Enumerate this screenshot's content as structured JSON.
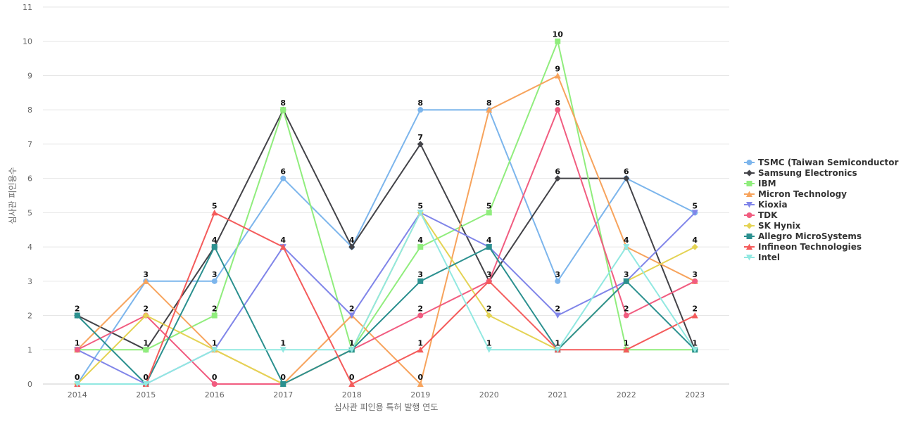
{
  "chart_data": {
    "type": "line",
    "xlabel": "심사관 피인용 특허 발행 연도",
    "ylabel": "심사관 피인용수",
    "ylim": [
      0,
      11
    ],
    "yticks": [
      0,
      1,
      2,
      3,
      4,
      5,
      6,
      7,
      8,
      9,
      10,
      11
    ],
    "grid": true,
    "legend_position": "right",
    "categories": [
      "2014",
      "2015",
      "2016",
      "2017",
      "2018",
      "2019",
      "2020",
      "2021",
      "2022",
      "2023"
    ],
    "series": [
      {
        "name": "TSMC (Taiwan Semiconductor ...",
        "color": "#7cb5ec",
        "marker": "circle",
        "values": [
          0,
          3,
          3,
          6,
          4,
          8,
          8,
          3,
          6,
          5
        ]
      },
      {
        "name": "Samsung Electronics",
        "color": "#434348",
        "marker": "diamond",
        "values": [
          2,
          1,
          4,
          8,
          4,
          7,
          3,
          6,
          6,
          1
        ]
      },
      {
        "name": "IBM",
        "color": "#90ed7d",
        "marker": "square",
        "values": [
          1,
          1,
          2,
          8,
          1,
          4,
          5,
          10,
          1,
          1
        ]
      },
      {
        "name": "Micron Technology",
        "color": "#f7a35c",
        "marker": "triangle",
        "values": [
          1,
          3,
          1,
          0,
          2,
          0,
          8,
          9,
          4,
          3
        ]
      },
      {
        "name": "Kioxia",
        "color": "#8085e9",
        "marker": "triangle-down",
        "values": [
          1,
          0,
          1,
          4,
          2,
          5,
          4,
          2,
          3,
          5
        ]
      },
      {
        "name": "TDK",
        "color": "#f15c80",
        "marker": "circle",
        "values": [
          1,
          2,
          0,
          0,
          1,
          2,
          3,
          8,
          2,
          3
        ]
      },
      {
        "name": "SK Hynix",
        "color": "#e4d354",
        "marker": "diamond",
        "values": [
          0,
          2,
          1,
          0,
          1,
          5,
          2,
          1,
          3,
          4
        ]
      },
      {
        "name": "Allegro MicroSystems",
        "color": "#2b908f",
        "marker": "square",
        "values": [
          2,
          0,
          4,
          0,
          1,
          3,
          4,
          1,
          3,
          1
        ]
      },
      {
        "name": "Infineon Technologies",
        "color": "#f45b5b",
        "marker": "triangle",
        "values": [
          0,
          0,
          5,
          4,
          0,
          1,
          3,
          1,
          1,
          2
        ]
      },
      {
        "name": "Intel",
        "color": "#91e8e1",
        "marker": "triangle-down",
        "values": [
          0,
          0,
          1,
          1,
          1,
          5,
          1,
          1,
          4,
          1
        ]
      }
    ],
    "data_labels": [
      {
        "category": "2014",
        "value": 2
      },
      {
        "category": "2014",
        "value": 1
      },
      {
        "category": "2014",
        "value": 0
      },
      {
        "category": "2015",
        "value": 3
      },
      {
        "category": "2015",
        "value": 2
      },
      {
        "category": "2015",
        "value": 1
      },
      {
        "category": "2015",
        "value": 0
      },
      {
        "category": "2016",
        "value": 5
      },
      {
        "category": "2016",
        "value": 4
      },
      {
        "category": "2016",
        "value": 3
      },
      {
        "category": "2016",
        "value": 2
      },
      {
        "category": "2016",
        "value": 1
      },
      {
        "category": "2016",
        "value": 0
      },
      {
        "category": "2017",
        "value": 8
      },
      {
        "category": "2017",
        "value": 6
      },
      {
        "category": "2017",
        "value": 4
      },
      {
        "category": "2017",
        "value": 1
      },
      {
        "category": "2017",
        "value": 0
      },
      {
        "category": "2018",
        "value": 4
      },
      {
        "category": "2018",
        "value": 2
      },
      {
        "category": "2018",
        "value": 1
      },
      {
        "category": "2018",
        "value": 0
      },
      {
        "category": "2019",
        "value": 8
      },
      {
        "category": "2019",
        "value": 7
      },
      {
        "category": "2019",
        "value": 5
      },
      {
        "category": "2019",
        "value": 4
      },
      {
        "category": "2019",
        "value": 3
      },
      {
        "category": "2019",
        "value": 2
      },
      {
        "category": "2019",
        "value": 1
      },
      {
        "category": "2019",
        "value": 0
      },
      {
        "category": "2020",
        "value": 8
      },
      {
        "category": "2020",
        "value": 5
      },
      {
        "category": "2020",
        "value": 4
      },
      {
        "category": "2020",
        "value": 3
      },
      {
        "category": "2020",
        "value": 2
      },
      {
        "category": "2020",
        "value": 1
      },
      {
        "category": "2021",
        "value": 10
      },
      {
        "category": "2021",
        "value": 9
      },
      {
        "category": "2021",
        "value": 8
      },
      {
        "category": "2021",
        "value": 6
      },
      {
        "category": "2021",
        "value": 3
      },
      {
        "category": "2021",
        "value": 2
      },
      {
        "category": "2021",
        "value": 1
      },
      {
        "category": "2022",
        "value": 6
      },
      {
        "category": "2022",
        "value": 4
      },
      {
        "category": "2022",
        "value": 3
      },
      {
        "category": "2022",
        "value": 2
      },
      {
        "category": "2022",
        "value": 1
      },
      {
        "category": "2023",
        "value": 5
      },
      {
        "category": "2023",
        "value": 4
      },
      {
        "category": "2023",
        "value": 3
      },
      {
        "category": "2023",
        "value": 2
      },
      {
        "category": "2023",
        "value": 1
      }
    ]
  }
}
